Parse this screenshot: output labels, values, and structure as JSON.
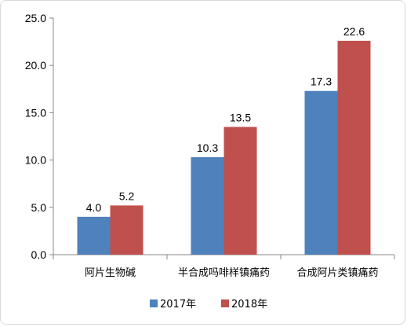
{
  "chart_data": {
    "type": "bar",
    "categories": [
      "阿片生物碱",
      "半合成吗啡样镇痛药",
      "合成阿片类镇痛药"
    ],
    "series": [
      {
        "name": "2017年",
        "values": [
          4.0,
          10.3,
          17.3
        ],
        "labels": [
          "4.0",
          "10.3",
          "17.3"
        ],
        "color": "#4f81bd"
      },
      {
        "name": "2018年",
        "values": [
          5.2,
          13.5,
          22.6
        ],
        "labels": [
          "5.2",
          "13.5",
          "22.6"
        ],
        "color": "#c0504d"
      }
    ],
    "ylim": [
      0,
      25
    ],
    "yticks": [
      0,
      5,
      10,
      15,
      20,
      25
    ],
    "ytick_labels": [
      "0.0",
      "5.0",
      "10.0",
      "15.0",
      "20.0",
      "25.0"
    ],
    "grid": false,
    "legend_position": "bottom",
    "axis_color": "#888888"
  }
}
